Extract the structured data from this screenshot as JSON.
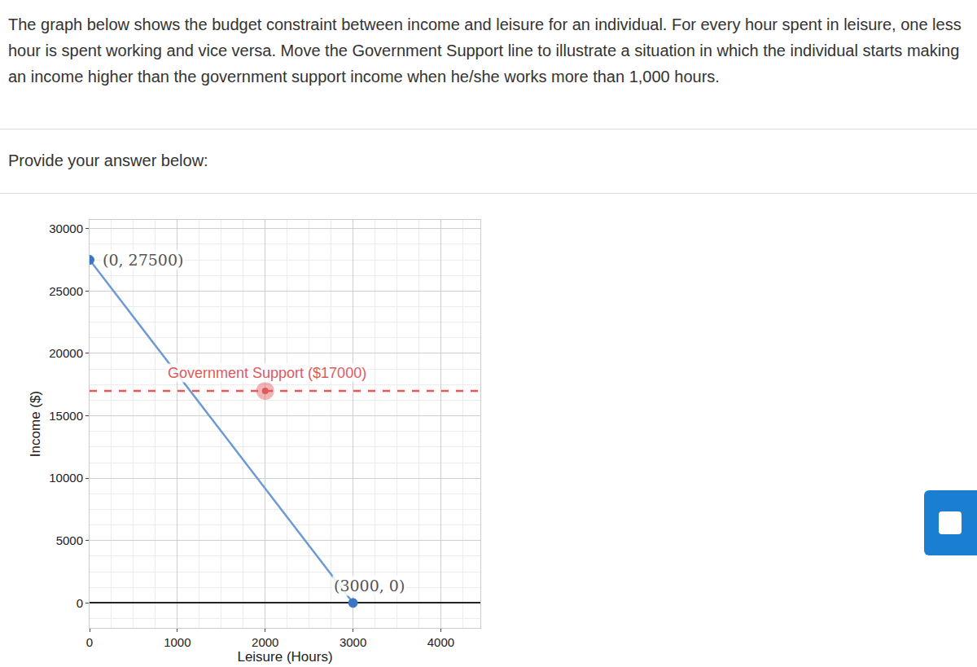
{
  "question": "The graph below shows the budget constraint between income and leisure for an individual. For every hour spent in leisure, one less hour is spent working and vice versa. Move the Government Support line to illustrate a situation in which the individual starts making an income higher than the government support income when he/she works more than 1,000 hours.",
  "prompt": "Provide your answer below:",
  "chart_data": {
    "type": "line",
    "xlabel": "Leisure (Hours)",
    "ylabel": "Income ($)",
    "xlim": [
      0,
      4450
    ],
    "ylim": [
      -2000,
      30700
    ],
    "xticks": [
      0,
      1000,
      2000,
      3000,
      4000
    ],
    "yticks": [
      0,
      5000,
      10000,
      15000,
      20000,
      25000,
      30000
    ],
    "grid": true,
    "series": [
      {
        "x": [
          0,
          3000
        ],
        "values": [
          27500,
          0
        ],
        "color": "#6b9bd2",
        "marker": "circle",
        "line_style": "solid",
        "point_labels": [
          "(0, 27500)",
          "(3000, 0)"
        ]
      },
      {
        "name": "Government Support ($17000)",
        "x": [
          0,
          4450
        ],
        "values": [
          17000,
          17000
        ],
        "color": "#e05a5a",
        "line_style": "dash"
      },
      {
        "x": [
          2000
        ],
        "values": [
          17000
        ],
        "color": "#e05a5a",
        "marker": "circle",
        "type": "scatter"
      }
    ]
  }
}
